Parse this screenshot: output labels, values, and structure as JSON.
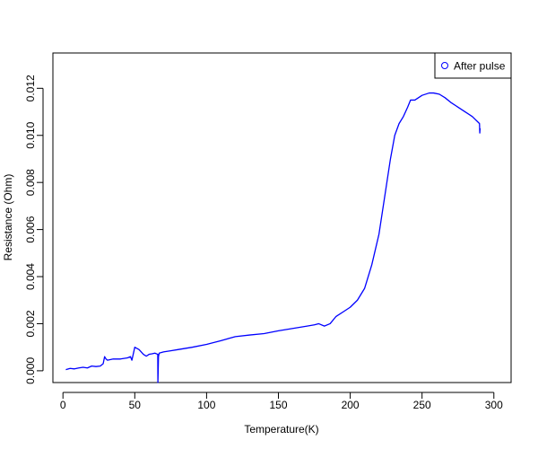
{
  "chart_data": {
    "type": "line",
    "title": "",
    "xlabel": "Temperature(K)",
    "ylabel": "Resistance (Ohm)",
    "xlim": [
      -7,
      312
    ],
    "ylim": [
      -0.0005,
      0.0135
    ],
    "x_ticks": [
      0,
      50,
      100,
      150,
      200,
      250,
      300
    ],
    "x_tick_labels": [
      "0",
      "50",
      "100",
      "150",
      "200",
      "250",
      "300"
    ],
    "y_ticks": [
      0,
      0.002,
      0.004,
      0.006,
      0.008,
      0.01,
      0.012
    ],
    "y_tick_labels": [
      "0.000",
      "0.002",
      "0.004",
      "0.006",
      "0.008",
      "0.010",
      "0.012"
    ],
    "grid": false,
    "legend_position": "top-right",
    "series": [
      {
        "name": "After pulse",
        "color": "#0000ff",
        "marker": "circle",
        "x": [
          2,
          5,
          8,
          11,
          14,
          17,
          20,
          23,
          26,
          28,
          29,
          30,
          31,
          35,
          40,
          45,
          47,
          48,
          50,
          53,
          56,
          58,
          60,
          62,
          64,
          66,
          66.1,
          66.5,
          67,
          70,
          75,
          80,
          90,
          100,
          110,
          120,
          130,
          140,
          150,
          160,
          170,
          175,
          178,
          182,
          186,
          190,
          195,
          200,
          205,
          210,
          215,
          220,
          225,
          228,
          231,
          234,
          237,
          240,
          242,
          245,
          250,
          255,
          258,
          262,
          266,
          270,
          275,
          280,
          285,
          290,
          290.2,
          290.4
        ],
        "y": [
          5e-05,
          0.0001,
          8e-05,
          0.00012,
          0.00015,
          0.00012,
          0.0002,
          0.00018,
          0.0002,
          0.0003,
          0.0006,
          0.0005,
          0.00045,
          0.0005,
          0.0005,
          0.00055,
          0.0006,
          0.00045,
          0.001,
          0.0009,
          0.0007,
          0.00062,
          0.0007,
          0.00072,
          0.00075,
          0.0007,
          -0.0005,
          0.0006,
          0.00075,
          0.0008,
          0.00085,
          0.0009,
          0.001,
          0.00112,
          0.00128,
          0.00145,
          0.00152,
          0.00158,
          0.0017,
          0.0018,
          0.0019,
          0.00195,
          0.002,
          0.0019,
          0.002,
          0.0023,
          0.0025,
          0.0027,
          0.003,
          0.0035,
          0.0045,
          0.0058,
          0.0078,
          0.009,
          0.01,
          0.0105,
          0.0108,
          0.0112,
          0.0115,
          0.0115,
          0.0117,
          0.0118,
          0.0118,
          0.01175,
          0.0116,
          0.0114,
          0.0112,
          0.011,
          0.0108,
          0.0105,
          0.0101,
          0.0103
        ]
      }
    ]
  }
}
